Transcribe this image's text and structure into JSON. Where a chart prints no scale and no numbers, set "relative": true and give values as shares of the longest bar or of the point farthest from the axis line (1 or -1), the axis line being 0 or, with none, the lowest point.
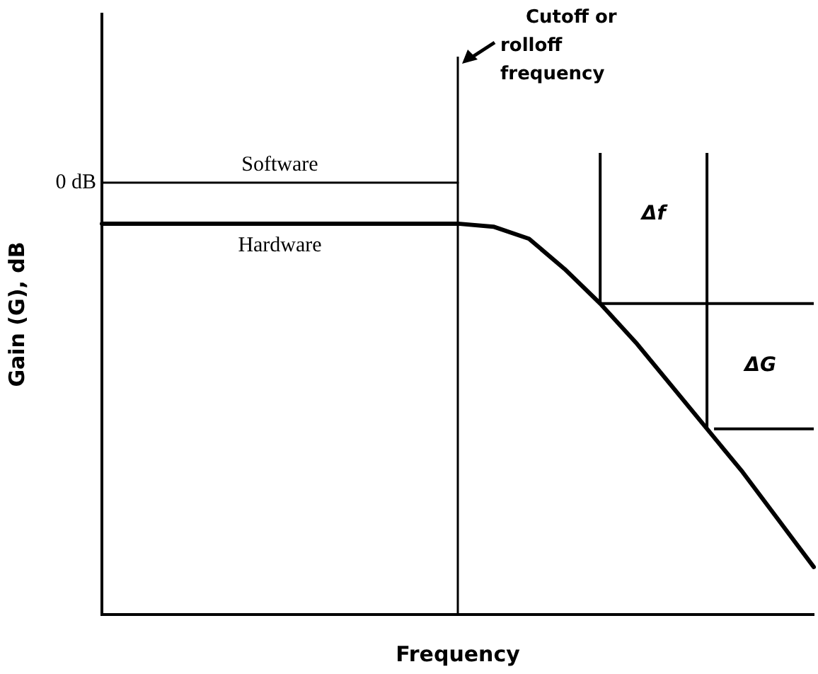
{
  "chart_data": {
    "type": "line",
    "relative": true,
    "xlabel": "Frequency",
    "ylabel": "Gain (G), dB",
    "legend": false,
    "marker": "none",
    "line_style": "solid",
    "categories": [
      null,
      null,
      null,
      null,
      null,
      null,
      null,
      null,
      null,
      null,
      null,
      null,
      null,
      null,
      null,
      null,
      null,
      null,
      null,
      null,
      null
    ],
    "series": [
      {
        "name": "Software",
        "color": "#000000",
        "values": [
          1,
          1,
          1,
          1,
          1,
          1,
          1,
          1,
          1,
          1,
          1,
          null,
          null,
          null,
          null,
          null,
          null,
          null,
          null,
          null,
          null
        ]
      },
      {
        "name": "Hardware",
        "color": "#000000",
        "values": [
          0.905,
          0.905,
          0.905,
          0.905,
          0.905,
          0.905,
          0.905,
          0.905,
          0.905,
          0.905,
          0.905,
          0.898,
          0.87,
          0.8,
          0.72,
          0.63,
          0.53,
          0.43,
          0.33,
          0.22,
          0.11
        ]
      }
    ],
    "annotations": [
      "Cutoff or rolloff frequency",
      "0 dB",
      "Δf",
      "ΔG"
    ]
  }
}
